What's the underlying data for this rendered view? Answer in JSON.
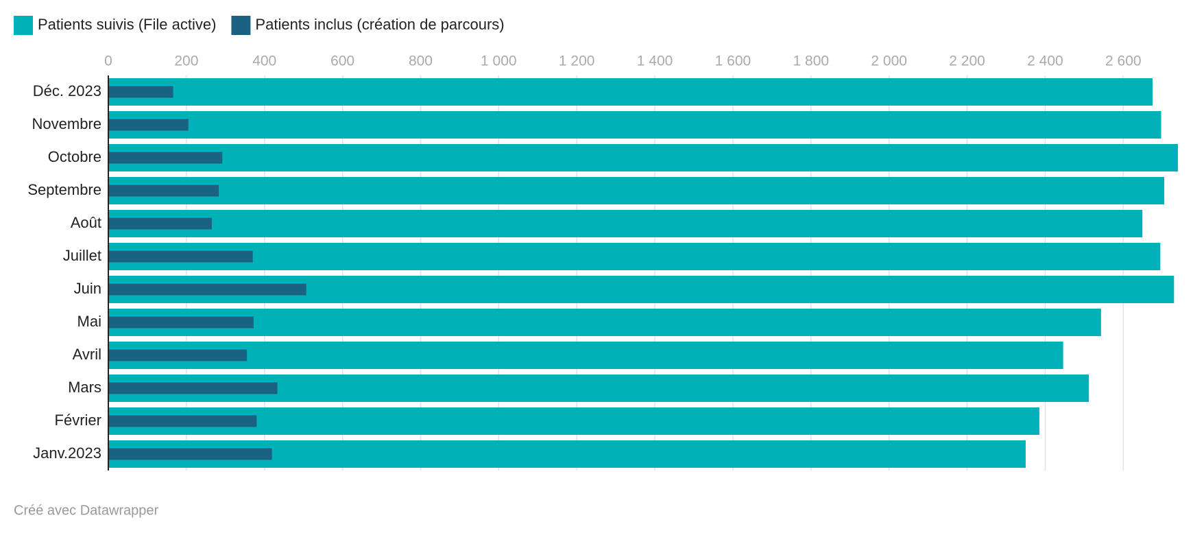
{
  "chart_data": {
    "type": "bar",
    "orientation": "horizontal",
    "categories": [
      "Déc. 2023",
      "Novembre",
      "Octobre",
      "Septembre",
      "Août",
      "Juillet",
      "Juin",
      "Mai",
      "Avril",
      "Mars",
      "Février",
      "Janv.2023"
    ],
    "series": [
      {
        "name": "Patients suivis (File active)",
        "color": "#00b1b9",
        "values": [
          2675,
          2697,
          2740,
          2705,
          2649,
          2695,
          2730,
          2543,
          2446,
          2512,
          2385,
          2350
        ]
      },
      {
        "name": "Patients inclus (création de parcours)",
        "color": "#1b6181",
        "values": [
          166,
          205,
          292,
          283,
          265,
          370,
          507,
          372,
          355,
          433,
          380,
          419
        ]
      }
    ],
    "xlim": [
      0,
      2740
    ],
    "xticks": [
      0,
      200,
      400,
      600,
      800,
      {
        "value": 1000,
        "label": "1 000"
      },
      {
        "value": 1200,
        "label": "1 200"
      },
      {
        "value": 1400,
        "label": "1 400"
      },
      {
        "value": 1600,
        "label": "1 600"
      },
      {
        "value": 1800,
        "label": "1 800"
      },
      {
        "value": 2000,
        "label": "2 000"
      },
      {
        "value": 2200,
        "label": "2 200"
      },
      {
        "value": 2400,
        "label": "2 400"
      },
      {
        "value": 2600,
        "label": "2 600"
      }
    ],
    "grid": true,
    "credit": "Créé avec Datawrapper"
  }
}
